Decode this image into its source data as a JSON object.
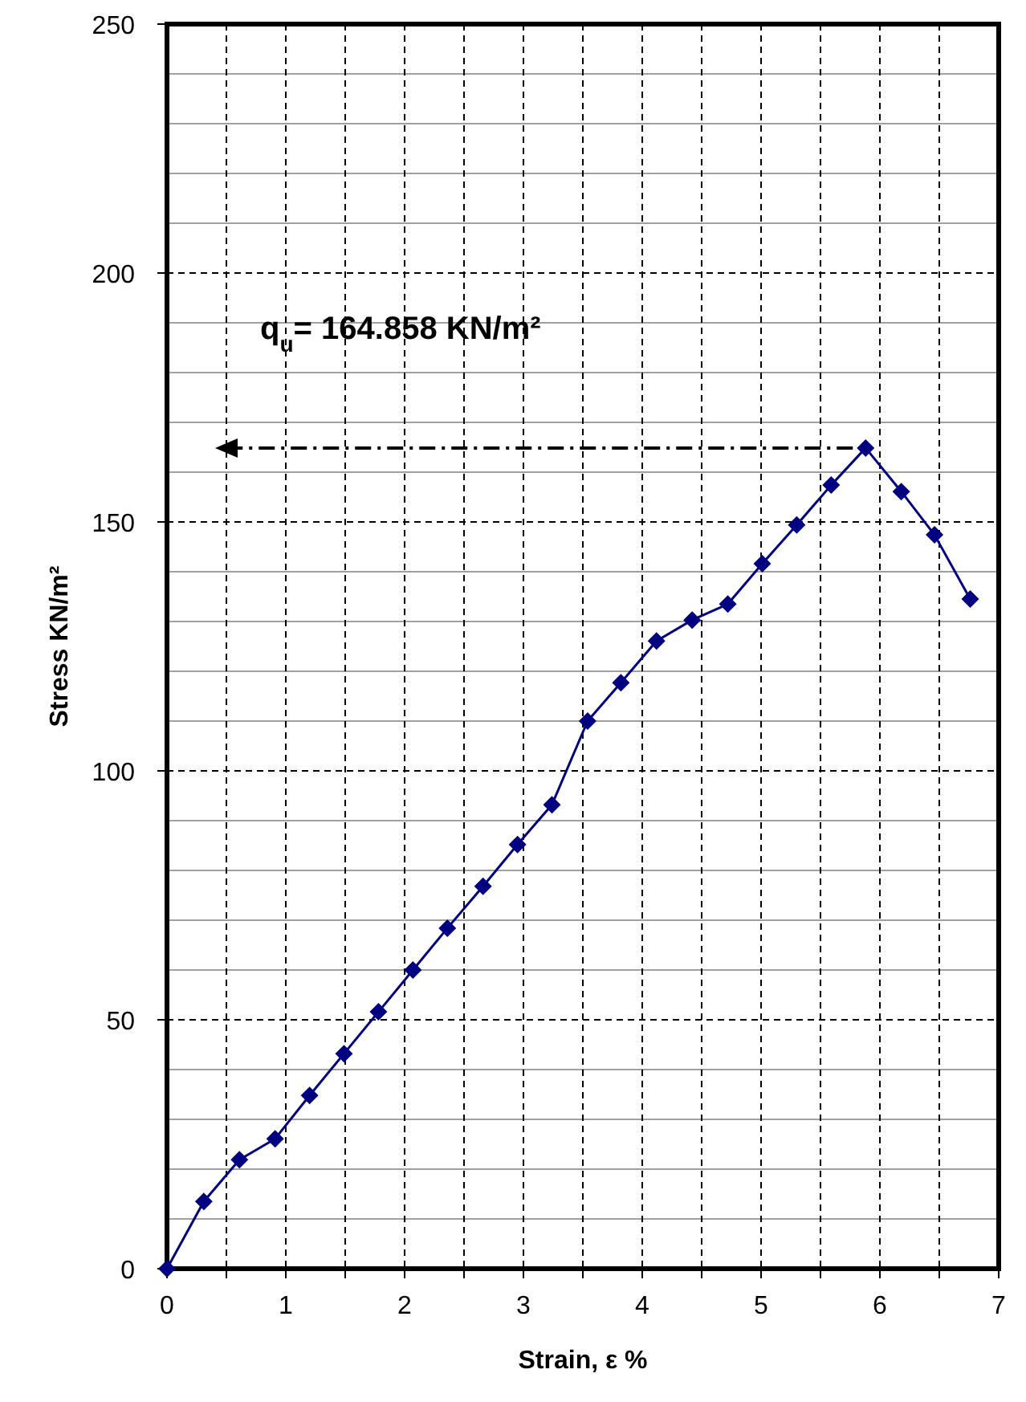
{
  "chart_data": {
    "type": "line",
    "xlabel": "Strain, ε %",
    "ylabel": "Stress KN/m²",
    "x": [
      0,
      0.31,
      0.61,
      0.91,
      1.2,
      1.49,
      1.78,
      2.07,
      2.36,
      2.66,
      2.95,
      3.24,
      3.54,
      3.82,
      4.12,
      4.42,
      4.72,
      5.01,
      5.3,
      5.59,
      5.88,
      6.18,
      6.46,
      6.76
    ],
    "series": [
      {
        "color": "#000080",
        "values": [
          0,
          13.5,
          21.9,
          26.1,
          34.8,
          43.2,
          51.6,
          60,
          68.4,
          76.8,
          85.2,
          93.2,
          110,
          117.7,
          126.1,
          130.3,
          133.5,
          141.6,
          149.4,
          157.4,
          164.858,
          156.1,
          147.4,
          134.5
        ]
      }
    ],
    "marker": "diamond",
    "line_style": "solid",
    "grid": true,
    "xlim": [
      0,
      7
    ],
    "xticks": [
      0,
      {
        "value": 0.5,
        "label": null
      },
      1,
      {
        "value": 1.5,
        "label": null
      },
      2,
      {
        "value": 2.5,
        "label": null
      },
      3,
      {
        "value": 3.5,
        "label": null
      },
      4,
      {
        "value": 4.5,
        "label": null
      },
      5,
      {
        "value": 5.5,
        "label": null
      },
      6,
      {
        "value": 6.5,
        "label": null
      },
      7
    ],
    "ylim": [
      0,
      250
    ],
    "yticks": [
      0,
      {
        "value": 10,
        "label": null
      },
      {
        "value": 20,
        "label": null
      },
      {
        "value": 30,
        "label": null
      },
      {
        "value": 40,
        "label": null
      },
      50,
      {
        "value": 60,
        "label": null
      },
      {
        "value": 70,
        "label": null
      },
      {
        "value": 80,
        "label": null
      },
      {
        "value": 90,
        "label": null
      },
      100,
      {
        "value": 110,
        "label": null
      },
      {
        "value": 120,
        "label": null
      },
      {
        "value": 130,
        "label": null
      },
      {
        "value": 140,
        "label": null
      },
      150,
      {
        "value": 160,
        "label": null
      },
      {
        "value": 170,
        "label": null
      },
      {
        "value": 180,
        "label": null
      },
      {
        "value": 190,
        "label": null
      },
      200,
      {
        "value": 210,
        "label": null
      },
      {
        "value": 220,
        "label": null
      },
      {
        "value": 230,
        "label": null
      },
      {
        "value": 240,
        "label": null
      },
      250
    ],
    "annotations": [
      "q$_{u}$= 164.858 KN/m²"
    ]
  }
}
